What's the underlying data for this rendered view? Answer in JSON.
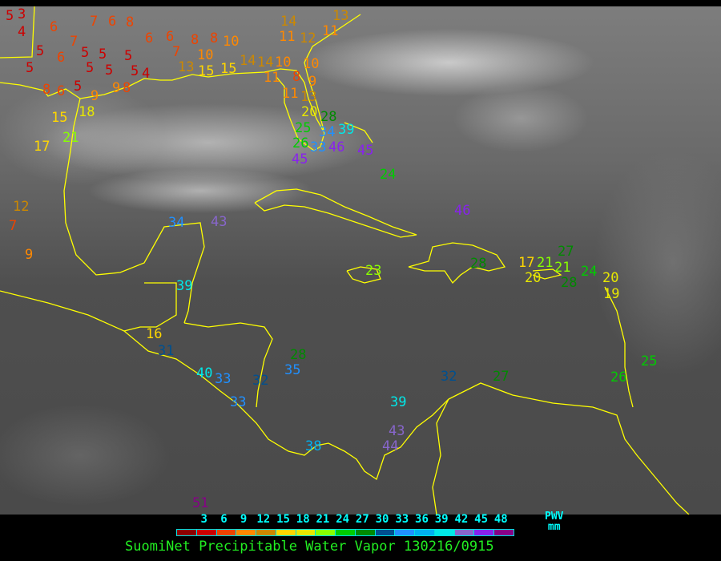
{
  "title": "SuomiNet Precipitable Water Vapor 130216/0915",
  "legend": {
    "unit_top": "PWV",
    "unit_bottom": "mm",
    "ticks": [
      "3",
      "6",
      "9",
      "12",
      "15",
      "18",
      "21",
      "24",
      "27",
      "30",
      "33",
      "36",
      "39",
      "42",
      "45",
      "48"
    ],
    "colors": [
      "#8b0000",
      "#cc0000",
      "#ee4400",
      "#ff8800",
      "#cc8800",
      "#ffd700",
      "#e8e800",
      "#88ff00",
      "#00cc00",
      "#008a00",
      "#00508f",
      "#2090ff",
      "#00b0f0",
      "#00e8e8",
      "#8866cc",
      "#8822ee",
      "#880088"
    ]
  },
  "coastline_color": "#ffff00",
  "stations": [
    5,
    3,
    4,
    6,
    7,
    5,
    6,
    5,
    5,
    5,
    5,
    5,
    5,
    5,
    4,
    8,
    6,
    5,
    9,
    8,
    9,
    15,
    18,
    21,
    17,
    12,
    7,
    9,
    7,
    6,
    8,
    6,
    6,
    7,
    8,
    8,
    10,
    10,
    13,
    15,
    15,
    14,
    14,
    11,
    10,
    8,
    10,
    9,
    14,
    11,
    12,
    11,
    13,
    13,
    11,
    20,
    28,
    34,
    25,
    26,
    33,
    39,
    46,
    45,
    45,
    24,
    46,
    34,
    43,
    39,
    16,
    31,
    23,
    28,
    17,
    20,
    21,
    21,
    27,
    28,
    24,
    20,
    19,
    25,
    26,
    32,
    27,
    28,
    35,
    40,
    33,
    32,
    33,
    39,
    43,
    44,
    38,
    51
  ]
}
